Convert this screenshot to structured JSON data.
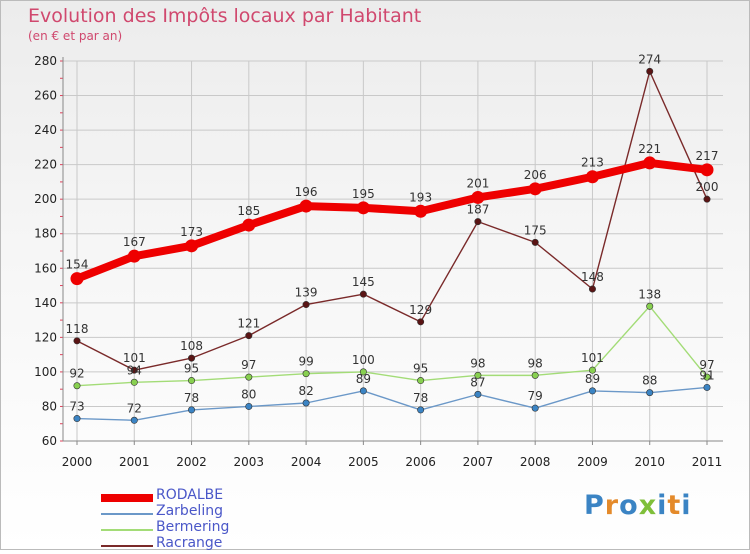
{
  "title": "Evolution des Impôts locaux par Habitant",
  "subtitle": "(en € et par an)",
  "logo": {
    "text": "Proxiti",
    "letter_colors": [
      "#3b84c4",
      "#e48a2a",
      "#3b84c4",
      "#7fbf3a",
      "#3b84c4",
      "#e48a2a",
      "#3b84c4"
    ]
  },
  "colors": {
    "grid": "#c9c9c9",
    "axis": "#888888",
    "minor_tick": "#e0405a"
  },
  "chart_data": {
    "type": "line",
    "title": "Evolution des Impôts locaux par Habitant",
    "ylabel": "(en € et par an)",
    "xlabel": "",
    "categories": [
      "2000",
      "2001",
      "2002",
      "2003",
      "2004",
      "2005",
      "2006",
      "2007",
      "2008",
      "2009",
      "2010",
      "2011"
    ],
    "ylim": [
      60,
      280
    ],
    "yticks": [
      60,
      80,
      100,
      120,
      140,
      160,
      180,
      200,
      220,
      240,
      260,
      280
    ],
    "grid": true,
    "legend_position": "bottom-left",
    "series": [
      {
        "name": "RODALBE",
        "color": "#ee0000",
        "dot_color": "#ee0000",
        "emphasis": true,
        "values": [
          154,
          167,
          173,
          185,
          196,
          195,
          193,
          201,
          206,
          213,
          221,
          217
        ]
      },
      {
        "name": "Zarbeling",
        "color": "#6b98c8",
        "dot_color": "#3b84c4",
        "emphasis": false,
        "values": [
          73,
          72,
          78,
          80,
          82,
          89,
          78,
          87,
          79,
          89,
          88,
          91
        ]
      },
      {
        "name": "Bermering",
        "color": "#a3dc77",
        "dot_color": "#88d050",
        "emphasis": false,
        "values": [
          92,
          94,
          95,
          97,
          99,
          100,
          95,
          98,
          98,
          101,
          138,
          97
        ]
      },
      {
        "name": "Racrange",
        "color": "#7a2a2a",
        "dot_color": "#5a1414",
        "emphasis": false,
        "values": [
          118,
          101,
          108,
          121,
          139,
          145,
          129,
          187,
          175,
          148,
          274,
          200
        ]
      }
    ],
    "data_labels": [
      [
        "154",
        "167",
        "173",
        "185",
        "196",
        "195",
        "193",
        "201",
        "206",
        "213",
        "221",
        "217"
      ],
      [
        "73",
        "72",
        "78",
        "80",
        "82",
        "89",
        "78",
        "87",
        "79",
        "89",
        "88",
        "91"
      ],
      [
        "92",
        "94",
        "95",
        "97",
        "99",
        "100",
        "95",
        "98",
        "98",
        "101",
        "138",
        "97"
      ],
      [
        "118",
        "101",
        "108",
        "121",
        "139",
        "145",
        "129",
        "187",
        "175",
        "148",
        "274",
        "200"
      ]
    ]
  }
}
